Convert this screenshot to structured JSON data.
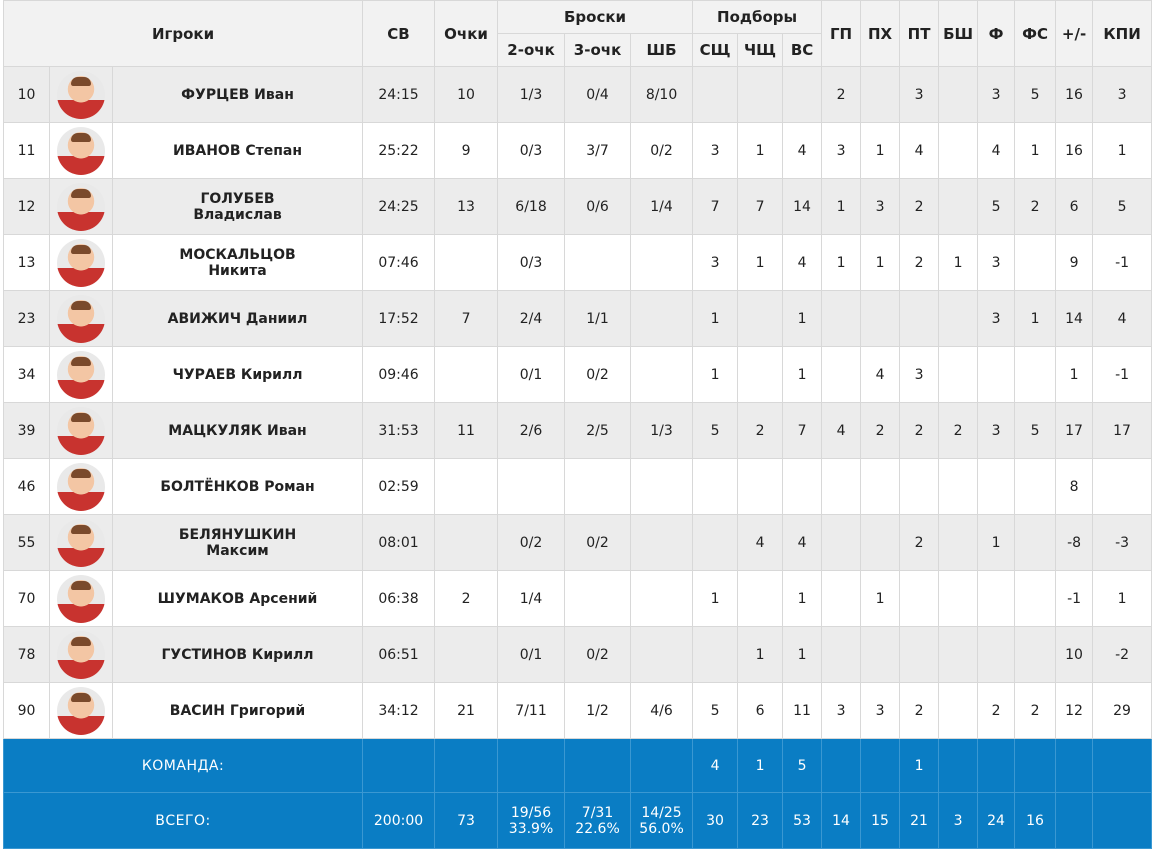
{
  "header": {
    "players": "Игроки",
    "minutes": "СВ",
    "points": "Очки",
    "shots": "Броски",
    "two_pt": "2-очк",
    "three_pt": "3-очк",
    "free_throws": "ШБ",
    "rebounds": "Подборы",
    "reb_def": "СЩ",
    "reb_off": "ЧЩ",
    "reb_total": "ВС",
    "assists": "ГП",
    "turnovers": "ПХ",
    "steals": "ПТ",
    "blocks": "БШ",
    "fouls": "Ф",
    "fouls_drawn": "ФС",
    "plus_minus": "+/-",
    "efficiency": "КПИ"
  },
  "players": [
    {
      "num": "10",
      "name1": "ФУРЦЕВ Иван",
      "name2": "",
      "min": "24:15",
      "pts": "10",
      "two": "1/3",
      "three": "0/4",
      "ft": "8/10",
      "dr": "",
      "or": "",
      "tr": "",
      "as": "2",
      "to": "",
      "st": "3",
      "bs": "",
      "pf": "3",
      "fd": "5",
      "pm": "16",
      "eff": "3"
    },
    {
      "num": "11",
      "name1": "ИВАНОВ Степан",
      "name2": "",
      "min": "25:22",
      "pts": "9",
      "two": "0/3",
      "three": "3/7",
      "ft": "0/2",
      "dr": "3",
      "or": "1",
      "tr": "4",
      "as": "3",
      "to": "1",
      "st": "4",
      "bs": "",
      "pf": "4",
      "fd": "1",
      "pm": "16",
      "eff": "1"
    },
    {
      "num": "12",
      "name1": "ГОЛУБЕВ",
      "name2": "Владислав",
      "min": "24:25",
      "pts": "13",
      "two": "6/18",
      "three": "0/6",
      "ft": "1/4",
      "dr": "7",
      "or": "7",
      "tr": "14",
      "as": "1",
      "to": "3",
      "st": "2",
      "bs": "",
      "pf": "5",
      "fd": "2",
      "pm": "6",
      "eff": "5"
    },
    {
      "num": "13",
      "name1": "МОСКАЛЬЦОВ",
      "name2": "Никита",
      "min": "07:46",
      "pts": "",
      "two": "0/3",
      "three": "",
      "ft": "",
      "dr": "3",
      "or": "1",
      "tr": "4",
      "as": "1",
      "to": "1",
      "st": "2",
      "bs": "1",
      "pf": "3",
      "fd": "",
      "pm": "9",
      "eff": "-1"
    },
    {
      "num": "23",
      "name1": "АВИЖИЧ Даниил",
      "name2": "",
      "min": "17:52",
      "pts": "7",
      "two": "2/4",
      "three": "1/1",
      "ft": "",
      "dr": "1",
      "or": "",
      "tr": "1",
      "as": "",
      "to": "",
      "st": "",
      "bs": "",
      "pf": "3",
      "fd": "1",
      "pm": "14",
      "eff": "4"
    },
    {
      "num": "34",
      "name1": "ЧУРАЕВ Кирилл",
      "name2": "",
      "min": "09:46",
      "pts": "",
      "two": "0/1",
      "three": "0/2",
      "ft": "",
      "dr": "1",
      "or": "",
      "tr": "1",
      "as": "",
      "to": "4",
      "st": "3",
      "bs": "",
      "pf": "",
      "fd": "",
      "pm": "1",
      "eff": "-1"
    },
    {
      "num": "39",
      "name1": "МАЦКУЛЯК Иван",
      "name2": "",
      "min": "31:53",
      "pts": "11",
      "two": "2/6",
      "three": "2/5",
      "ft": "1/3",
      "dr": "5",
      "or": "2",
      "tr": "7",
      "as": "4",
      "to": "2",
      "st": "2",
      "bs": "2",
      "pf": "3",
      "fd": "5",
      "pm": "17",
      "eff": "17"
    },
    {
      "num": "46",
      "name1": "БОЛТЁНКОВ Роман",
      "name2": "",
      "min": "02:59",
      "pts": "",
      "two": "",
      "three": "",
      "ft": "",
      "dr": "",
      "or": "",
      "tr": "",
      "as": "",
      "to": "",
      "st": "",
      "bs": "",
      "pf": "",
      "fd": "",
      "pm": "8",
      "eff": ""
    },
    {
      "num": "55",
      "name1": "БЕЛЯНУШКИН",
      "name2": "Максим",
      "min": "08:01",
      "pts": "",
      "two": "0/2",
      "three": "0/2",
      "ft": "",
      "dr": "",
      "or": "4",
      "tr": "4",
      "as": "",
      "to": "",
      "st": "2",
      "bs": "",
      "pf": "1",
      "fd": "",
      "pm": "-8",
      "eff": "-3"
    },
    {
      "num": "70",
      "name1": "ШУМАКОВ Арсений",
      "name2": "",
      "min": "06:38",
      "pts": "2",
      "two": "1/4",
      "three": "",
      "ft": "",
      "dr": "1",
      "or": "",
      "tr": "1",
      "as": "",
      "to": "1",
      "st": "",
      "bs": "",
      "pf": "",
      "fd": "",
      "pm": "-1",
      "eff": "1"
    },
    {
      "num": "78",
      "name1": "ГУСТИНОВ Кирилл",
      "name2": "",
      "min": "06:51",
      "pts": "",
      "two": "0/1",
      "three": "0/2",
      "ft": "",
      "dr": "",
      "or": "1",
      "tr": "1",
      "as": "",
      "to": "",
      "st": "",
      "bs": "",
      "pf": "",
      "fd": "",
      "pm": "10",
      "eff": "-2"
    },
    {
      "num": "90",
      "name1": "ВАСИН Григорий",
      "name2": "",
      "min": "34:12",
      "pts": "21",
      "two": "7/11",
      "three": "1/2",
      "ft": "4/6",
      "dr": "5",
      "or": "6",
      "tr": "11",
      "as": "3",
      "to": "3",
      "st": "2",
      "bs": "",
      "pf": "2",
      "fd": "2",
      "pm": "12",
      "eff": "29"
    }
  ],
  "team": {
    "label": "КОМАНДА:",
    "dr": "4",
    "or": "1",
    "tr": "5",
    "st": "1"
  },
  "total": {
    "label": "ВСЕГО:",
    "min": "200:00",
    "pts": "73",
    "two": "19/56",
    "two_pct": "33.9%",
    "three": "7/31",
    "three_pct": "22.6%",
    "ft": "14/25",
    "ft_pct": "56.0%",
    "dr": "30",
    "or": "23",
    "tr": "53",
    "as": "14",
    "to": "15",
    "st": "21",
    "bs": "3",
    "pf": "24",
    "fd": "16",
    "pm": "",
    "eff": ""
  },
  "colors": {
    "total_bg": "#0a7dc4",
    "header_bg": "#f2f2f2",
    "row_alt": "#ececec"
  }
}
